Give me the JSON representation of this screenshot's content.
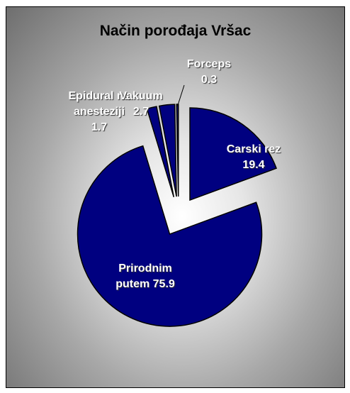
{
  "chart_data": {
    "type": "pie",
    "title": "Način porođaja Vršac",
    "categories": [
      "Carski rez",
      "Prirodnim putem",
      "Epidural na anesteziji",
      "Vakuum",
      "Forceps"
    ],
    "values": [
      19.4,
      75.9,
      1.7,
      2.7,
      0.3
    ],
    "color": "#000080",
    "exploded": true
  }
}
